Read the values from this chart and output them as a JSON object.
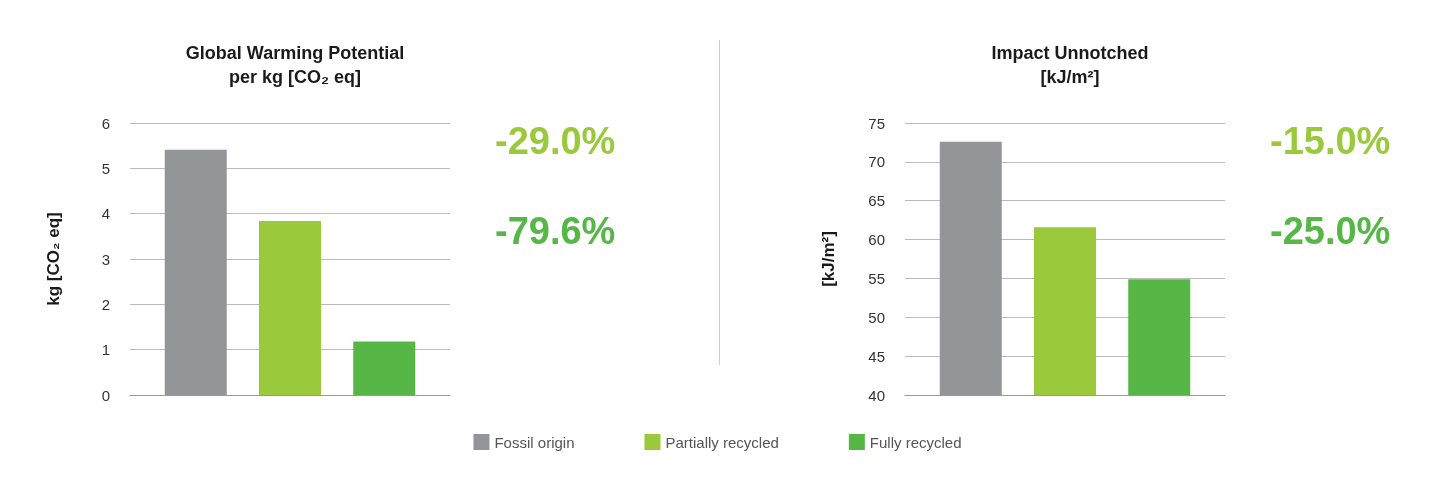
{
  "chart_data": [
    {
      "type": "bar",
      "title": "Global Warming Potential\nper kg [CO₂ eq]",
      "ylabel": "kg [CO₂ eq]",
      "categories": [
        null
      ],
      "series": [
        {
          "name": "Fossil origin",
          "color": "#939598",
          "values": [
            5.41
          ]
        },
        {
          "name": "Partially recycled",
          "color": "#9bc93c",
          "values": [
            3.84
          ]
        },
        {
          "name": "Fully recycled",
          "color": "#56b746",
          "values": [
            1.18
          ]
        }
      ],
      "ylim": [
        0,
        6
      ],
      "yticks": [
        0,
        1,
        2,
        3,
        4,
        5,
        6
      ],
      "grid": "y",
      "legend": "bottom",
      "annotations": [
        "-29.0%",
        "-79.6%"
      ]
    },
    {
      "type": "bar",
      "title": "Impact Unnotched\n[kJ/m²]",
      "ylabel": "[kJ/m²]",
      "categories": [
        null
      ],
      "series": [
        {
          "color": "#939598",
          "values": [
            72.6
          ]
        },
        {
          "color": "#9bc93c",
          "values": [
            61.6
          ]
        },
        {
          "color": "#56b746",
          "values": [
            54.9
          ]
        }
      ],
      "ylim": [
        40,
        75
      ],
      "yticks": [
        40,
        45,
        50,
        55,
        60,
        65,
        70,
        75
      ],
      "grid": "y",
      "annotations": [
        "-15.0%",
        "-25.0%"
      ]
    }
  ]
}
